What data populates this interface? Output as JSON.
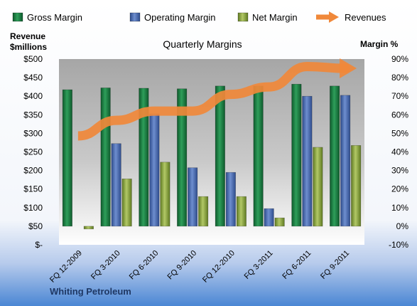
{
  "chart_data": {
    "type": "bar",
    "title": "Quarterly Margins",
    "company": "Whiting Petroleum",
    "ylabel_left": [
      "Revenue",
      "$millions"
    ],
    "ylabel_right": "Margin %",
    "categories": [
      "FQ 12-2009",
      "FQ 3-2010",
      "FQ 6-2010",
      "FQ 9-2010",
      "FQ 12-2010",
      "FQ 3-2011",
      "FQ 6-2011",
      "FQ 9-2011"
    ],
    "series": [
      {
        "name": "Gross Margin",
        "type": "bar",
        "axis": "right",
        "color": "#1E8449",
        "values": [
          73.5,
          74.5,
          74.3,
          74,
          75.5,
          75.5,
          76.5,
          75.5
        ]
      },
      {
        "name": "Operating Margin",
        "type": "bar",
        "axis": "right",
        "color": "#4F6FB5",
        "values": [
          0,
          44.5,
          60.5,
          31.5,
          29,
          9.5,
          70,
          70.5
        ]
      },
      {
        "name": "Net Margin",
        "type": "bar",
        "axis": "right",
        "color": "#8FAA3E",
        "values": [
          -1.5,
          25.5,
          34.5,
          16,
          16,
          4.5,
          42.5,
          43.5
        ]
      },
      {
        "name": "Revenues",
        "type": "line-arrow",
        "axis": "left",
        "color": "#F0883A",
        "values": [
          293,
          335,
          360,
          360,
          405,
          425,
          480,
          475
        ]
      }
    ],
    "left_axis": {
      "min": 0,
      "max": 500,
      "step": 50,
      "ticks": [
        "$-",
        "$50",
        "$100",
        "$150",
        "$200",
        "$250",
        "$300",
        "$350",
        "$400",
        "$450",
        "$500"
      ]
    },
    "right_axis": {
      "min": -10,
      "max": 90,
      "step": 10,
      "ticks": [
        "-10%",
        "0%",
        "10%",
        "20%",
        "30%",
        "40%",
        "50%",
        "60%",
        "70%",
        "80%",
        "90%"
      ]
    },
    "grid": false,
    "legend_position": "top"
  }
}
